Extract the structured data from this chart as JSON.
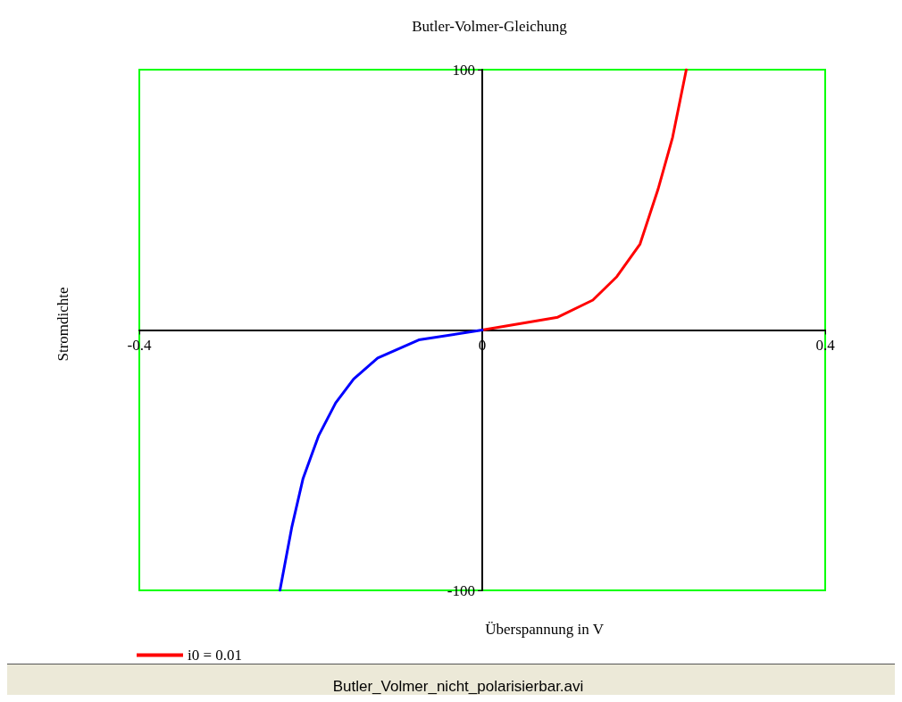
{
  "chart_data": {
    "type": "line",
    "title": "Butler-Volmer-Gleichung",
    "xlabel": "Überspannung in V",
    "ylabel": "Stromdichte",
    "annotations": [
      "Butler_Volmer_nicht_polarisierbar.avi"
    ],
    "xlim": [
      -0.4,
      0.4
    ],
    "xticks": [
      -0.4,
      0,
      0.4
    ],
    "ylim": [
      -100,
      100
    ],
    "yticks": [
      -100,
      100
    ],
    "grid": false,
    "legend": "bottom left",
    "marker": "none",
    "line_style": "solid",
    "series": [
      {
        "name": "i0 = 0.01",
        "color": "#ff0000",
        "x": [
          0,
          0.088,
          0.129,
          0.157,
          0.184,
          0.205,
          0.222,
          0.238
        ],
        "values": [
          0,
          4.9,
          11.5,
          20.5,
          33,
          54,
          74,
          100
        ]
      },
      {
        "color": "#0000ff",
        "x": [
          0,
          -0.074,
          -0.122,
          -0.15,
          -0.171,
          -0.191,
          -0.209,
          -0.222,
          -0.236
        ],
        "values": [
          0,
          -3.8,
          -10.8,
          -18.8,
          -28,
          -40.7,
          -57,
          -75.5,
          -100
        ]
      }
    ]
  }
}
